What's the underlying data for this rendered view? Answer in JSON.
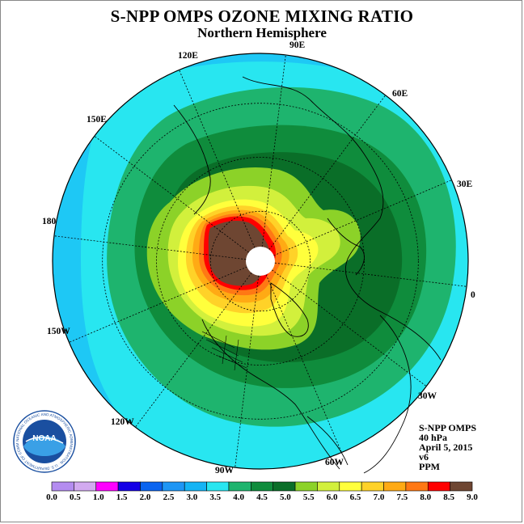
{
  "title": "S-NPP OMPS OZONE MIXING RATIO",
  "subtitle": "Northern Hemisphere",
  "longitude_labels": {
    "e90": "90E",
    "e120": "120E",
    "e60": "60E",
    "e150": "150E",
    "e30": "30E",
    "w180": "180",
    "z0": "0",
    "w150": "150W",
    "w30": "30W",
    "w120": "120W",
    "w60": "60W",
    "w90": "90W"
  },
  "info": {
    "instrument": "S-NPP OMPS",
    "level": "40 hPa",
    "date": "April 5, 2015",
    "version": "v6",
    "units": "PPM"
  },
  "colorbar": {
    "ticks": [
      "0.0",
      "0.5",
      "1.0",
      "1.5",
      "2.0",
      "2.5",
      "3.0",
      "3.5",
      "4.0",
      "4.5",
      "5.0",
      "5.5",
      "6.0",
      "6.5",
      "7.0",
      "7.5",
      "8.0",
      "8.5",
      "9.0"
    ],
    "colors": [
      "#b48cf0",
      "#d2aaf0",
      "#ff00ff",
      "#1400e6",
      "#0a64f0",
      "#1e96f5",
      "#14b4f5",
      "#28e6f0",
      "#1eb46e",
      "#0f8c3c",
      "#0a6e28",
      "#8cd228",
      "#d2f03c",
      "#ffff3c",
      "#ffd228",
      "#ffaa14",
      "#ff7814",
      "#ff0000",
      "#6e4632"
    ]
  },
  "logo": {
    "text": "NOAA",
    "ring_text": "NATIONAL OCEANIC AND ATMOSPHERIC ADMINISTRATION · U.S. DEPARTMENT OF COMMERCE"
  },
  "palette": {
    "bg_outer": "#1ec8f5",
    "cyan": "#28e6f0",
    "green_light": "#1eb46e",
    "green": "#0f8c3c",
    "green_dark": "#0a6e28",
    "lime": "#8cd228",
    "yellow_green": "#d2f03c",
    "yellow": "#ffff3c",
    "gold": "#ffd228",
    "orange": "#ffaa14",
    "dark_orange": "#ff7814",
    "red": "#ff0000",
    "brown": "#6e4632"
  }
}
